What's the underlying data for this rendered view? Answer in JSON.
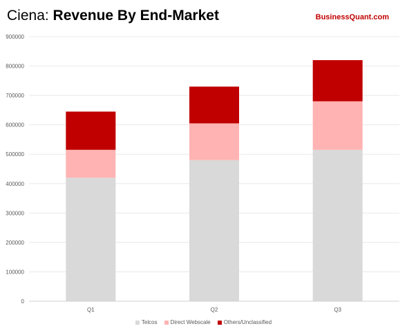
{
  "title": {
    "prefix": "Ciena: ",
    "bold": "Revenue By End-Market"
  },
  "brand": "BusinessQuant.com",
  "chart_data": {
    "type": "bar",
    "stacked": true,
    "title": "Ciena: Revenue By End-Market",
    "xlabel": "",
    "ylabel": "",
    "categories": [
      "Q1",
      "Q2",
      "Q3"
    ],
    "ylim": [
      0,
      900000
    ],
    "yticks": [
      0,
      100000,
      200000,
      300000,
      400000,
      500000,
      600000,
      700000,
      800000,
      900000
    ],
    "grid": true,
    "legend_position": "bottom",
    "series": [
      {
        "name": "Telcos",
        "color": "#d9d9d9",
        "values": [
          420000,
          480000,
          515000
        ]
      },
      {
        "name": "Direct Webscale",
        "color": "#ffb3b3",
        "values": [
          95000,
          125000,
          165000
        ]
      },
      {
        "name": "Others/Unclassified",
        "color": "#c00000",
        "values": [
          130000,
          125000,
          140000
        ]
      }
    ]
  }
}
